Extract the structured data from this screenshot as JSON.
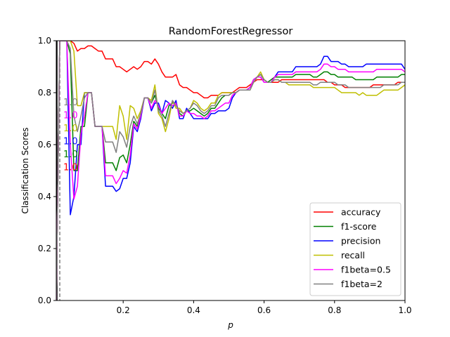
{
  "chart_data": {
    "type": "line",
    "title": "RandomForestRegressor",
    "xlabel": "p",
    "ylabel": "Classification Scores",
    "xlim": [
      0.01,
      1.0
    ],
    "ylim": [
      0.0,
      1.0
    ],
    "xticks": [
      "0.2",
      "0.4",
      "0.6",
      "0.8",
      "1.0"
    ],
    "yticks": [
      "0.0",
      "0.2",
      "0.4",
      "0.6",
      "0.8",
      "1.0"
    ],
    "grid": false,
    "legend_position": "lower-right",
    "annotations": [
      {
        "text": "1.0",
        "x": 0.03,
        "y": 0.765,
        "color": "#808080"
      },
      {
        "text": "1.0",
        "x": 0.03,
        "y": 0.715,
        "color": "#ff00ff"
      },
      {
        "text": "1.0",
        "x": 0.03,
        "y": 0.665,
        "color": "#bfbf00"
      },
      {
        "text": "1.0",
        "x": 0.03,
        "y": 0.615,
        "color": "#0000ff"
      },
      {
        "text": "1.0",
        "x": 0.03,
        "y": 0.565,
        "color": "#008000"
      },
      {
        "text": "1.0",
        "x": 0.03,
        "y": 0.515,
        "color": "#ff0000"
      }
    ],
    "x": [
      0.01,
      0.02,
      0.03,
      0.04,
      0.05,
      0.06,
      0.07,
      0.08,
      0.09,
      0.1,
      0.11,
      0.12,
      0.13,
      0.14,
      0.15,
      0.16,
      0.17,
      0.18,
      0.19,
      0.2,
      0.21,
      0.22,
      0.23,
      0.24,
      0.25,
      0.26,
      0.27,
      0.28,
      0.29,
      0.3,
      0.31,
      0.32,
      0.33,
      0.34,
      0.35,
      0.36,
      0.37,
      0.38,
      0.39,
      0.4,
      0.41,
      0.42,
      0.43,
      0.44,
      0.45,
      0.46,
      0.47,
      0.48,
      0.49,
      0.5,
      0.51,
      0.52,
      0.53,
      0.54,
      0.55,
      0.56,
      0.57,
      0.58,
      0.59,
      0.6,
      0.61,
      0.62,
      0.63,
      0.64,
      0.65,
      0.66,
      0.67,
      0.68,
      0.69,
      0.7,
      0.71,
      0.72,
      0.73,
      0.74,
      0.75,
      0.76,
      0.77,
      0.78,
      0.79,
      0.8,
      0.81,
      0.82,
      0.83,
      0.84,
      0.85,
      0.86,
      0.87,
      0.88,
      0.89,
      0.9,
      0.91,
      0.92,
      0.93,
      0.94,
      0.95,
      0.96,
      0.97,
      0.98,
      0.99,
      1.0
    ],
    "series": [
      {
        "name": "accuracy",
        "color": "#ff0000",
        "values": [
          0.0,
          1.0,
          1.0,
          1.0,
          1.0,
          0.99,
          0.96,
          0.97,
          0.97,
          0.98,
          0.98,
          0.97,
          0.96,
          0.96,
          0.93,
          0.93,
          0.93,
          0.9,
          0.9,
          0.89,
          0.88,
          0.89,
          0.9,
          0.89,
          0.9,
          0.92,
          0.92,
          0.91,
          0.93,
          0.91,
          0.88,
          0.86,
          0.86,
          0.86,
          0.87,
          0.83,
          0.82,
          0.82,
          0.81,
          0.8,
          0.8,
          0.79,
          0.78,
          0.78,
          0.79,
          0.79,
          0.79,
          0.8,
          0.8,
          0.8,
          0.8,
          0.81,
          0.82,
          0.82,
          0.82,
          0.83,
          0.84,
          0.85,
          0.85,
          0.85,
          0.84,
          0.84,
          0.84,
          0.84,
          0.85,
          0.85,
          0.85,
          0.85,
          0.85,
          0.85,
          0.85,
          0.85,
          0.85,
          0.85,
          0.85,
          0.85,
          0.85,
          0.84,
          0.84,
          0.83,
          0.83,
          0.83,
          0.82,
          0.82,
          0.82,
          0.82,
          0.82,
          0.82,
          0.82,
          0.82,
          0.83,
          0.83,
          0.83,
          0.83,
          0.83,
          0.83,
          0.83,
          0.84,
          0.84,
          0.84
        ]
      },
      {
        "name": "f1-score",
        "color": "#008000",
        "values": [
          0.0,
          1.0,
          1.0,
          1.0,
          0.95,
          0.5,
          0.5,
          0.67,
          0.67,
          0.8,
          0.8,
          0.67,
          0.67,
          0.67,
          0.53,
          0.53,
          0.53,
          0.5,
          0.55,
          0.56,
          0.53,
          0.6,
          0.69,
          0.67,
          0.72,
          0.78,
          0.78,
          0.76,
          0.79,
          0.74,
          0.72,
          0.7,
          0.75,
          0.76,
          0.76,
          0.72,
          0.71,
          0.73,
          0.73,
          0.74,
          0.73,
          0.72,
          0.71,
          0.72,
          0.74,
          0.74,
          0.76,
          0.78,
          0.79,
          0.79,
          0.8,
          0.8,
          0.81,
          0.81,
          0.81,
          0.82,
          0.85,
          0.86,
          0.87,
          0.85,
          0.84,
          0.85,
          0.86,
          0.86,
          0.86,
          0.86,
          0.86,
          0.86,
          0.87,
          0.87,
          0.87,
          0.87,
          0.87,
          0.86,
          0.86,
          0.87,
          0.88,
          0.88,
          0.87,
          0.87,
          0.86,
          0.86,
          0.86,
          0.86,
          0.86,
          0.85,
          0.85,
          0.85,
          0.85,
          0.85,
          0.85,
          0.86,
          0.86,
          0.86,
          0.86,
          0.86,
          0.86,
          0.86,
          0.87,
          0.87
        ]
      },
      {
        "name": "precision",
        "color": "#0000ff",
        "values": [
          0.0,
          1.0,
          1.0,
          1.0,
          0.33,
          0.4,
          0.6,
          0.6,
          0.8,
          0.8,
          0.8,
          0.67,
          0.67,
          0.67,
          0.44,
          0.44,
          0.44,
          0.42,
          0.43,
          0.47,
          0.47,
          0.53,
          0.67,
          0.65,
          0.7,
          0.78,
          0.78,
          0.73,
          0.76,
          0.76,
          0.72,
          0.77,
          0.76,
          0.74,
          0.77,
          0.7,
          0.7,
          0.74,
          0.72,
          0.7,
          0.7,
          0.7,
          0.7,
          0.7,
          0.72,
          0.72,
          0.73,
          0.73,
          0.73,
          0.74,
          0.78,
          0.8,
          0.81,
          0.81,
          0.81,
          0.82,
          0.85,
          0.86,
          0.86,
          0.84,
          0.84,
          0.84,
          0.86,
          0.88,
          0.88,
          0.88,
          0.88,
          0.88,
          0.9,
          0.9,
          0.9,
          0.9,
          0.9,
          0.9,
          0.9,
          0.91,
          0.94,
          0.94,
          0.92,
          0.92,
          0.92,
          0.91,
          0.91,
          0.9,
          0.9,
          0.9,
          0.9,
          0.9,
          0.91,
          0.91,
          0.91,
          0.91,
          0.91,
          0.91,
          0.91,
          0.91,
          0.91,
          0.91,
          0.91,
          0.89
        ]
      },
      {
        "name": "recall",
        "color": "#bfbf00",
        "values": [
          0.0,
          1.0,
          1.0,
          1.0,
          1.0,
          0.96,
          0.75,
          0.75,
          0.8,
          0.8,
          0.8,
          0.67,
          0.67,
          0.67,
          0.67,
          0.67,
          0.67,
          0.62,
          0.75,
          0.71,
          0.62,
          0.75,
          0.74,
          0.7,
          0.73,
          0.78,
          0.78,
          0.77,
          0.83,
          0.72,
          0.7,
          0.65,
          0.7,
          0.77,
          0.74,
          0.74,
          0.72,
          0.73,
          0.74,
          0.77,
          0.76,
          0.74,
          0.73,
          0.74,
          0.76,
          0.76,
          0.79,
          0.8,
          0.8,
          0.8,
          0.8,
          0.8,
          0.81,
          0.81,
          0.81,
          0.81,
          0.84,
          0.86,
          0.88,
          0.85,
          0.84,
          0.84,
          0.85,
          0.85,
          0.84,
          0.84,
          0.83,
          0.83,
          0.83,
          0.83,
          0.83,
          0.83,
          0.83,
          0.82,
          0.82,
          0.82,
          0.82,
          0.82,
          0.82,
          0.82,
          0.81,
          0.8,
          0.8,
          0.8,
          0.8,
          0.8,
          0.79,
          0.8,
          0.79,
          0.79,
          0.79,
          0.79,
          0.8,
          0.81,
          0.81,
          0.81,
          0.81,
          0.81,
          0.82,
          0.83
        ]
      },
      {
        "name": "f1beta=0.5",
        "color": "#ff00ff",
        "values": [
          0.0,
          1.0,
          1.0,
          1.0,
          0.6,
          0.39,
          0.44,
          0.64,
          0.71,
          0.8,
          0.8,
          0.67,
          0.67,
          0.67,
          0.48,
          0.48,
          0.48,
          0.45,
          0.47,
          0.5,
          0.49,
          0.56,
          0.68,
          0.66,
          0.71,
          0.78,
          0.78,
          0.74,
          0.77,
          0.75,
          0.72,
          0.74,
          0.76,
          0.75,
          0.76,
          0.71,
          0.71,
          0.73,
          0.72,
          0.72,
          0.71,
          0.71,
          0.7,
          0.71,
          0.73,
          0.73,
          0.74,
          0.75,
          0.76,
          0.76,
          0.79,
          0.8,
          0.81,
          0.81,
          0.81,
          0.82,
          0.85,
          0.86,
          0.86,
          0.84,
          0.84,
          0.84,
          0.86,
          0.87,
          0.87,
          0.87,
          0.87,
          0.87,
          0.88,
          0.88,
          0.88,
          0.88,
          0.88,
          0.88,
          0.88,
          0.89,
          0.91,
          0.91,
          0.9,
          0.9,
          0.89,
          0.89,
          0.89,
          0.88,
          0.88,
          0.88,
          0.88,
          0.88,
          0.88,
          0.88,
          0.88,
          0.89,
          0.89,
          0.89,
          0.89,
          0.89,
          0.89,
          0.89,
          0.89,
          0.88
        ]
      },
      {
        "name": "f1beta=2",
        "color": "#808080",
        "values": [
          0.0,
          1.0,
          1.0,
          1.0,
          0.97,
          0.71,
          0.65,
          0.71,
          0.78,
          0.8,
          0.8,
          0.67,
          0.67,
          0.67,
          0.61,
          0.61,
          0.61,
          0.57,
          0.65,
          0.63,
          0.59,
          0.67,
          0.71,
          0.68,
          0.72,
          0.78,
          0.78,
          0.76,
          0.81,
          0.73,
          0.71,
          0.67,
          0.72,
          0.77,
          0.75,
          0.73,
          0.72,
          0.73,
          0.74,
          0.76,
          0.75,
          0.73,
          0.72,
          0.73,
          0.75,
          0.75,
          0.78,
          0.79,
          0.79,
          0.79,
          0.8,
          0.8,
          0.81,
          0.81,
          0.81,
          0.81,
          0.84,
          0.86,
          0.87,
          0.85,
          0.84,
          0.84,
          0.85,
          0.85,
          0.84,
          0.84,
          0.84,
          0.84,
          0.84,
          0.84,
          0.84,
          0.84,
          0.84,
          0.83,
          0.83,
          0.84,
          0.84,
          0.84,
          0.84,
          0.84,
          0.83,
          0.83,
          0.83,
          0.82,
          0.82,
          0.82,
          0.82,
          0.82,
          0.82,
          0.82,
          0.82,
          0.82,
          0.82,
          0.83,
          0.83,
          0.83,
          0.83,
          0.83,
          0.84,
          0.84
        ]
      }
    ]
  }
}
